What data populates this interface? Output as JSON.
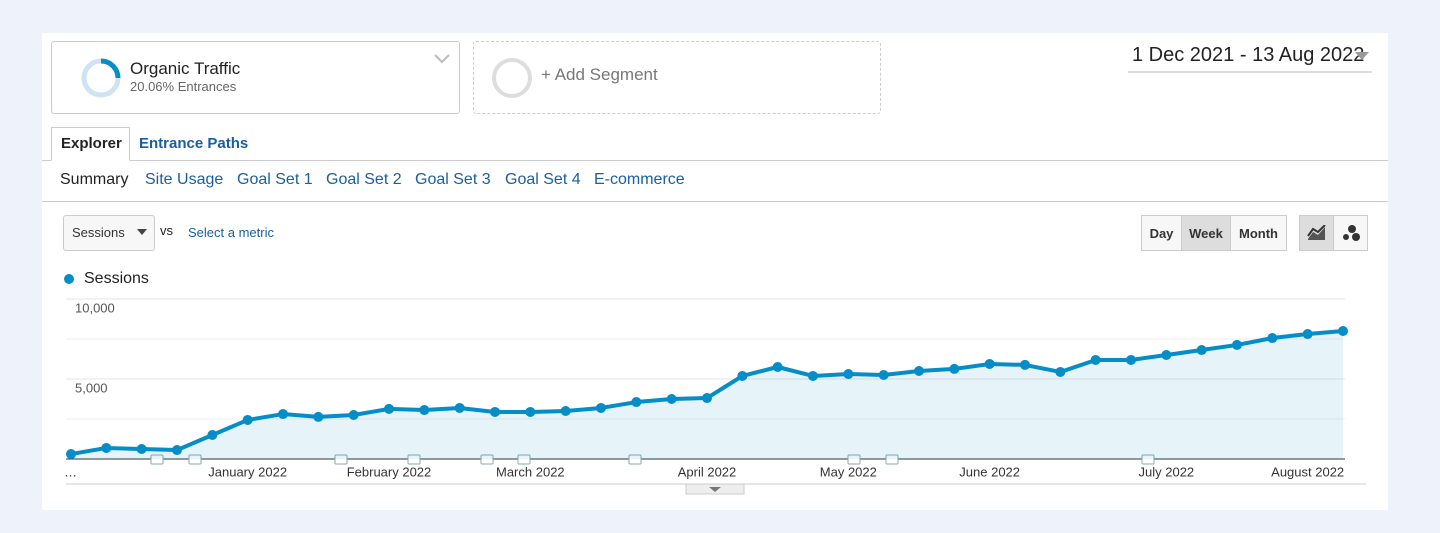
{
  "segments": {
    "active": {
      "name": "Organic Traffic",
      "detail": "20.06% Entrances"
    },
    "add": "+ Add Segment"
  },
  "date_range": "1 Dec 2021 - 13 Aug 2022",
  "tabs": [
    "Explorer",
    "Entrance Paths"
  ],
  "subtabs": [
    "Summary",
    "Site Usage",
    "Goal Set 1",
    "Goal Set 2",
    "Goal Set 3",
    "Goal Set 4",
    "E-commerce"
  ],
  "metric": {
    "selected": "Sessions",
    "vs": "vs",
    "compare": "Select a metric"
  },
  "granularity": [
    "Day",
    "Week",
    "Month"
  ],
  "chart_data": {
    "type": "line",
    "categories": [
      "…",
      null,
      null,
      null,
      null,
      "January 2022",
      null,
      null,
      null,
      "February 2022",
      null,
      null,
      null,
      "March 2022",
      null,
      null,
      null,
      null,
      "April 2022",
      null,
      null,
      null,
      "May 2022",
      null,
      null,
      null,
      "June 2022",
      null,
      null,
      null,
      null,
      "July 2022",
      null,
      null,
      null,
      "August 2022",
      null
    ],
    "series": [
      {
        "name": "Sessions",
        "color": "#058dc7",
        "values": [
          310,
          690,
          625,
          560,
          1500,
          2440,
          2810,
          2630,
          2750,
          3130,
          3060,
          3190,
          2940,
          2940,
          3000,
          3190,
          3560,
          3750,
          3810,
          5190,
          5750,
          5190,
          5310,
          5250,
          5500,
          5630,
          5940,
          5880,
          5440,
          6190,
          6190,
          6500,
          6810,
          7130,
          7560,
          7810,
          8000
        ]
      }
    ],
    "ylim": [
      0,
      10000
    ],
    "yticks": [
      {
        "value": 5000,
        "label": "5,000"
      },
      {
        "value": 10000,
        "label": "10,000"
      }
    ],
    "grid": true
  }
}
